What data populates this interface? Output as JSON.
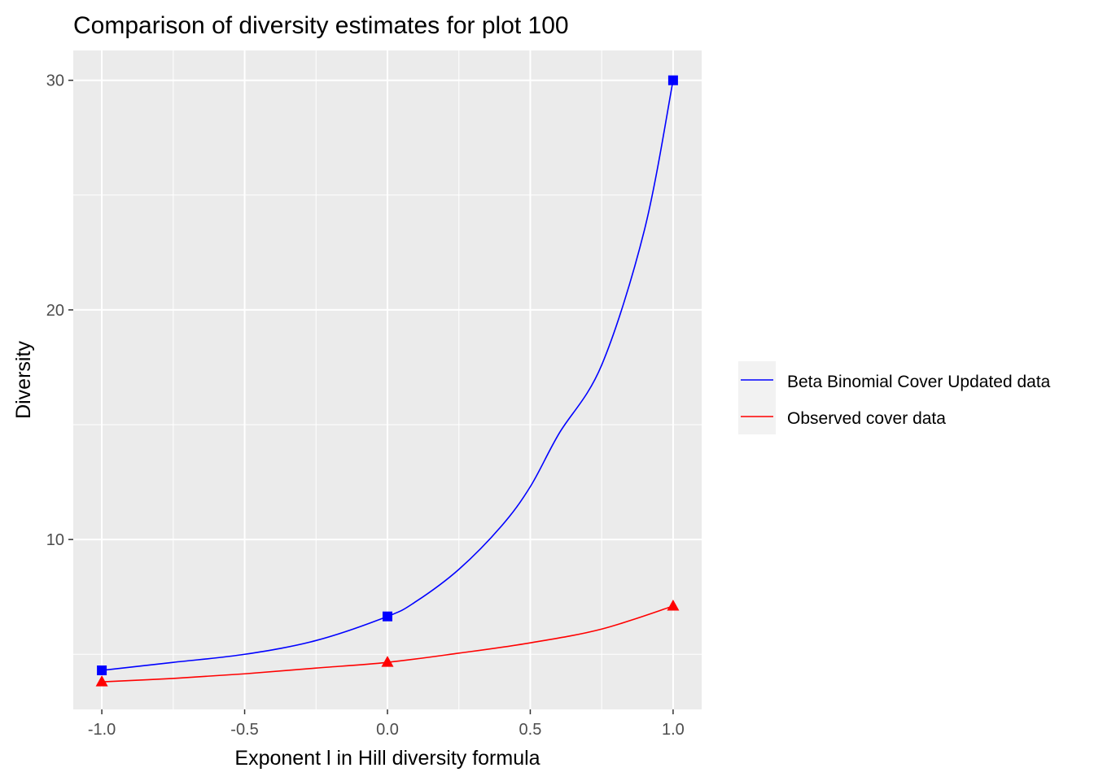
{
  "chart_data": {
    "type": "line",
    "title": "Comparison of diversity estimates for plot 100",
    "xlabel": "Exponent l in Hill diversity formula",
    "ylabel": "Diversity",
    "xlim": [
      -1.1,
      1.1
    ],
    "ylim": [
      2.6,
      31.3
    ],
    "x_ticks": [
      -1.0,
      -0.5,
      0.0,
      0.5,
      1.0
    ],
    "x_tick_labels": [
      "-1.0",
      "-0.5",
      "0.0",
      "0.5",
      "1.0"
    ],
    "y_ticks": [
      10,
      20,
      30
    ],
    "y_tick_labels": [
      "10",
      "20",
      "30"
    ],
    "grid": true,
    "legend_position": "right",
    "series": [
      {
        "name": "Beta Binomial Cover Updated data",
        "color": "#0000ff",
        "marker": "square",
        "markers": {
          "x": [
            -1.0,
            0.0,
            1.0
          ],
          "y": [
            4.3,
            6.65,
            30.0
          ]
        },
        "curve": {
          "x": [
            -1.0,
            -0.75,
            -0.5,
            -0.25,
            0.0,
            0.1,
            0.25,
            0.4,
            0.5,
            0.6,
            0.75,
            0.9,
            1.0
          ],
          "y": [
            4.3,
            4.65,
            5.0,
            5.6,
            6.65,
            7.3,
            8.7,
            10.6,
            12.3,
            14.6,
            17.6,
            23.5,
            30.0
          ]
        }
      },
      {
        "name": "Observed cover data",
        "color": "#ff0000",
        "marker": "triangle",
        "markers": {
          "x": [
            -1.0,
            0.0,
            1.0
          ],
          "y": [
            3.8,
            4.65,
            7.1
          ]
        },
        "curve": {
          "x": [
            -1.0,
            -0.75,
            -0.5,
            -0.25,
            0.0,
            0.25,
            0.5,
            0.75,
            1.0
          ],
          "y": [
            3.8,
            3.95,
            4.15,
            4.4,
            4.65,
            5.05,
            5.5,
            6.1,
            7.1
          ]
        }
      }
    ]
  }
}
